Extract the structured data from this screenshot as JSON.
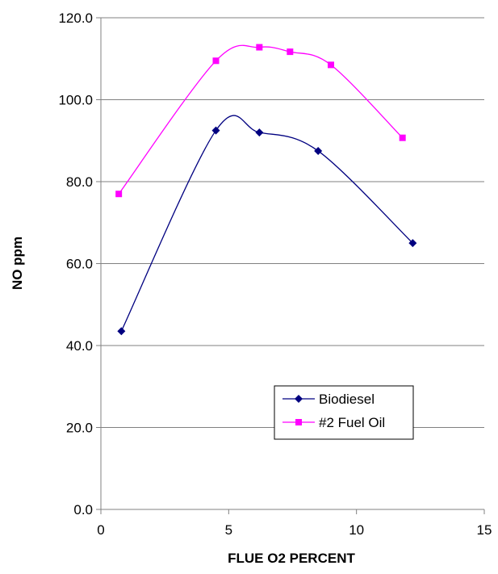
{
  "chart_data": {
    "type": "line",
    "title": "",
    "xlabel": "FLUE O2 PERCENT",
    "ylabel": "NO  ppm",
    "xlim": [
      0,
      15
    ],
    "ylim": [
      0,
      120
    ],
    "x_ticks": [
      "0",
      "5",
      "10",
      "15"
    ],
    "y_ticks": [
      "0.0",
      "20.0",
      "40.0",
      "60.0",
      "80.0",
      "100.0",
      "120.0"
    ],
    "grid": "horizontal",
    "legend_position": "bottom-right",
    "series": [
      {
        "name": "Biodiesel",
        "color": "#000080",
        "marker": "diamond",
        "x": [
          0.8,
          4.5,
          6.2,
          8.5,
          12.2
        ],
        "y": [
          43.5,
          92.5,
          92.0,
          87.5,
          65.0
        ]
      },
      {
        "name": "#2 Fuel Oil",
        "color": "#ff00ff",
        "marker": "square",
        "x": [
          0.7,
          4.5,
          6.2,
          7.4,
          9.0,
          11.8
        ],
        "y": [
          77.0,
          109.5,
          112.8,
          111.7,
          108.5,
          90.7
        ]
      }
    ]
  }
}
